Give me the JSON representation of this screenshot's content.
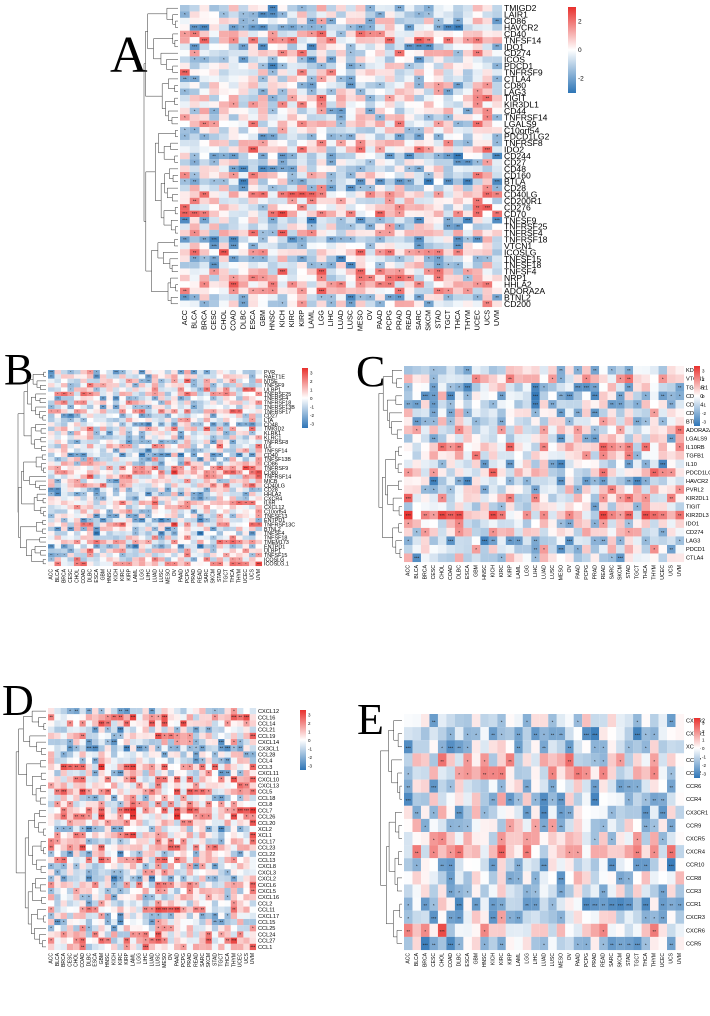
{
  "figure": {
    "colors": {
      "high": "#e8302d",
      "mid": "#ffffff",
      "low": "#2e75b6",
      "outline": "#cfcfcf"
    }
  },
  "chart_data": [
    {
      "type": "heatmap",
      "panel": "A",
      "rows": [
        "TMIGD2",
        "LAIR1",
        "CD86",
        "HAVCR2",
        "CD40",
        "TNFSF14",
        "IDO1",
        "CD274",
        "ICOS",
        "PDCD1",
        "TNFRSF9",
        "CTLA4",
        "CD80",
        "LAG3",
        "TIGIT",
        "KIR3DL1",
        "CD44",
        "TNFRSF14",
        "LGALS9",
        "C10orf54",
        "PDCD1LG2",
        "TNFRSF8",
        "IDO2",
        "CD244",
        "CD27",
        "CD48",
        "CD160",
        "BTLA",
        "CD28",
        "CD40LG",
        "CD200R1",
        "CD276",
        "CD70",
        "TNFSF9",
        "TNFRSF25",
        "TNFRSF4",
        "TNFRSF18",
        "VTCN1",
        "ICOSLG",
        "TNFSF15",
        "TNFSF18",
        "TNFSF4",
        "NRP1",
        "HHLA2",
        "ADORA2A",
        "BTNL2",
        "CD200"
      ],
      "columns": [
        "ACC",
        "BLCA",
        "BRCA",
        "CESC",
        "CHOL",
        "COAD",
        "DLBC",
        "ESCA",
        "GBM",
        "HNSC",
        "KICH",
        "KIRC",
        "KIRP",
        "LAML",
        "LGG",
        "LIHC",
        "LUAD",
        "LUSC",
        "MESO",
        "OV",
        "PAAD",
        "PCPG",
        "PRAD",
        "READ",
        "SARC",
        "SKCM",
        "STAD",
        "TGCT",
        "THCA",
        "THYM",
        "UCEC",
        "UCS",
        "UVM"
      ],
      "legend_ticks": [
        "2",
        "0",
        "-2"
      ],
      "seed": 11
    },
    {
      "type": "heatmap",
      "panel": "B",
      "rows": [
        "PVR",
        "RAET1E",
        "NT5E",
        "TNFSF9",
        "ULBP1",
        "TNFRSF25",
        "TNFRSF4",
        "TNFRSF18",
        "TNFRSF13B",
        "TNFRSF17",
        "CD27",
        "LTA",
        "CD48",
        "TMIGD2",
        "KLRK1",
        "KLRC1",
        "TNFRSF8",
        "IL6",
        "TNFSF14",
        "CD40",
        "TNFSF13B",
        "CD86",
        "TNFRSF9",
        "CD80",
        "TNFRSF14",
        "MICB",
        "CD40LG",
        "CD28",
        "HHLA2",
        "CXCR4",
        "IL6R",
        "CXCL12",
        "C10orf54",
        "TNFSF13",
        "ENTPD1",
        "TNFRSF13C",
        "BTNL2",
        "TNFSF4",
        "TNFSF18",
        "TMEM173",
        "ENTPD1",
        "ULBP1",
        "TNFSF15",
        "ICOSLG",
        "ICOSLG.1"
      ],
      "columns": [
        "ACC",
        "BLCA",
        "BRCA",
        "CESC",
        "CHOL",
        "COAD",
        "DLBC",
        "ESCA",
        "GBM",
        "HNSC",
        "KICH",
        "KIRC",
        "KIRP",
        "LAML",
        "LGG",
        "LIHC",
        "LUAD",
        "LUSC",
        "MESO",
        "OV",
        "PAAD",
        "PCPG",
        "PRAD",
        "READ",
        "SARC",
        "SKCM",
        "STAD",
        "TGCT",
        "THCA",
        "THYM",
        "UCEC",
        "UCS",
        "UVM"
      ],
      "legend_ticks": [
        "3",
        "2",
        "1",
        "0",
        "-1",
        "-2",
        "-3"
      ],
      "seed": 23
    },
    {
      "type": "heatmap",
      "panel": "C",
      "rows": [
        "KDR",
        "VTCN1",
        "TGFBR1",
        "CD160",
        "CD244",
        "CD96",
        "BTLA",
        "ADORA2A",
        "LGALS9",
        "IL10RB",
        "TGFB1",
        "IL10",
        "PDCD1LG2",
        "HAVCR2",
        "PVRL2",
        "KIR2DL1",
        "TIGIT",
        "KIR2DL3",
        "IDO1",
        "CD274",
        "LAG3",
        "PDCD1",
        "CTLA4"
      ],
      "columns": [
        "ACC",
        "BLCA",
        "BRCA",
        "CESC",
        "CHOL",
        "COAD",
        "DLBC",
        "ESCA",
        "GBM",
        "HNSC",
        "KICH",
        "KIRC",
        "KIRP",
        "LAML",
        "LGG",
        "LIHC",
        "LUAD",
        "LUSC",
        "MESO",
        "OV",
        "PAAD",
        "PCPG",
        "PRAD",
        "READ",
        "SARC",
        "SKCM",
        "STAD",
        "TGCT",
        "THCA",
        "THYM",
        "UCEC",
        "UCS",
        "UVM"
      ],
      "legend_ticks": [
        "3",
        "2",
        "1",
        "0",
        "-1",
        "-2",
        "-3"
      ],
      "seed": 37
    },
    {
      "type": "heatmap",
      "panel": "D",
      "rows": [
        "CXCL12",
        "CCL16",
        "CCL14",
        "CCL21",
        "CCL19",
        "CXCL14",
        "CX3CL1",
        "CCL28",
        "CCL4",
        "CCL3",
        "CXCL11",
        "CXCL10",
        "CXCL13",
        "CCL5",
        "CCL18",
        "CCL8",
        "CCL7",
        "CCL26",
        "CCL20",
        "XCL2",
        "XCL1",
        "CCL17",
        "CCL23",
        "CCL22",
        "CCL13",
        "CXCL8",
        "CXCL3",
        "CXCL2",
        "CXCL6",
        "CXCL5",
        "CXCL16",
        "CCL2",
        "CCL11",
        "CXCL17",
        "CCL15",
        "CCL25",
        "CCL24",
        "CCL27",
        "CCL1"
      ],
      "columns": [
        "ACC",
        "BLCA",
        "BRCA",
        "CESC",
        "CHOL",
        "COAD",
        "DLBC",
        "ESCA",
        "GBM",
        "HNSC",
        "KICH",
        "KIRC",
        "KIRP",
        "LAML",
        "LGG",
        "LIHC",
        "LUAD",
        "LUSC",
        "MESO",
        "OV",
        "PAAD",
        "PCPG",
        "PRAD",
        "READ",
        "SARC",
        "SKCM",
        "STAD",
        "TGCT",
        "THCA",
        "THYM",
        "UCEC",
        "UCS",
        "UVM"
      ],
      "legend_ticks": [
        "3",
        "2",
        "1",
        "0",
        "-1",
        "-2",
        "-3"
      ],
      "seed": 41
    },
    {
      "type": "heatmap",
      "panel": "E",
      "rows": [
        "CXCR2",
        "CXCR1",
        "XCR1",
        "CCR7",
        "CCR2",
        "CCR6",
        "CCR4",
        "CX3CR1",
        "CCR9",
        "CXCR5",
        "CXCR4",
        "CCR10",
        "CCR8",
        "CCR3",
        "CCR1",
        "CXCR3",
        "CXCR6",
        "CCR5"
      ],
      "columns": [
        "ACC",
        "BLCA",
        "BRCA",
        "CESC",
        "CHOL",
        "COAD",
        "DLBC",
        "ESCA",
        "GBM",
        "HNSC",
        "KICH",
        "KIRC",
        "KIRP",
        "LAML",
        "LGG",
        "LIHC",
        "LUAD",
        "LUSC",
        "MESO",
        "OV",
        "PAAD",
        "PCPG",
        "PRAD",
        "READ",
        "SARC",
        "SKCM",
        "STAD",
        "TGCT",
        "THCA",
        "THYM",
        "UCEC",
        "UCS",
        "UVM"
      ],
      "legend_ticks": [
        "3",
        "2",
        "1",
        "0",
        "-1",
        "-2",
        "-3"
      ],
      "seed": 53
    }
  ]
}
